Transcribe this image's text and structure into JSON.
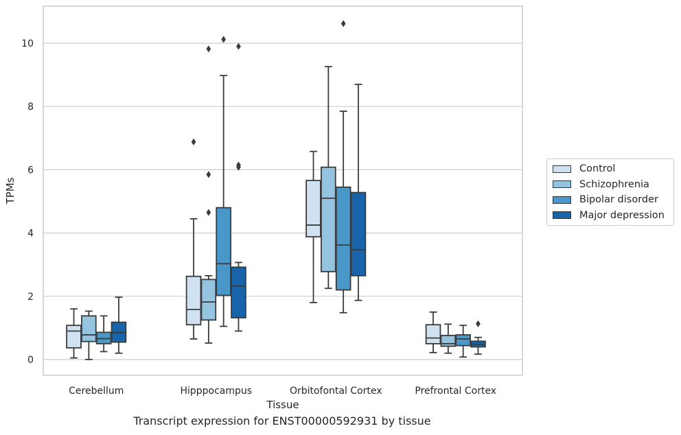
{
  "chart_data": {
    "type": "boxplot",
    "title": "Transcript expression for ENST00000592931 by tissue",
    "xlabel": "Tissue",
    "ylabel": "TPMs",
    "ylim": [
      -0.5,
      11.2
    ],
    "yticks": [
      0,
      2,
      4,
      6,
      8,
      10
    ],
    "grid": "horizontal",
    "legend_position": "right",
    "categories": [
      "Cerebellum",
      "Hipppocampus",
      "Orbitofontal Cortex",
      "Prefrontal Cortex"
    ],
    "series": [
      {
        "name": "Control",
        "color": "#d0e1f2",
        "boxes": [
          {
            "whislo": 0.05,
            "q1": 0.37,
            "med": 0.9,
            "q3": 1.08,
            "whishi": 1.6,
            "fliers": []
          },
          {
            "whislo": 0.65,
            "q1": 1.1,
            "med": 1.58,
            "q3": 2.63,
            "whishi": 4.45,
            "fliers": [
              6.88
            ]
          },
          {
            "whislo": 1.8,
            "q1": 3.88,
            "med": 4.25,
            "q3": 5.66,
            "whishi": 6.58,
            "fliers": []
          },
          {
            "whislo": 0.22,
            "q1": 0.5,
            "med": 0.68,
            "q3": 1.1,
            "whishi": 1.5,
            "fliers": []
          }
        ]
      },
      {
        "name": "Schizophrenia",
        "color": "#94c4df",
        "boxes": [
          {
            "whislo": 0.0,
            "q1": 0.57,
            "med": 0.78,
            "q3": 1.38,
            "whishi": 1.53,
            "fliers": []
          },
          {
            "whislo": 0.52,
            "q1": 1.25,
            "med": 1.82,
            "q3": 2.53,
            "whishi": 2.65,
            "fliers": [
              4.65,
              5.85,
              9.82
            ]
          },
          {
            "whislo": 2.25,
            "q1": 2.78,
            "med": 5.1,
            "q3": 6.08,
            "whishi": 9.26,
            "fliers": []
          },
          {
            "whislo": 0.2,
            "q1": 0.42,
            "med": 0.5,
            "q3": 0.76,
            "whishi": 1.12,
            "fliers": []
          }
        ]
      },
      {
        "name": "Bipolar disorder",
        "color": "#4a98c9",
        "boxes": [
          {
            "whislo": 0.25,
            "q1": 0.5,
            "med": 0.66,
            "q3": 0.86,
            "whishi": 1.38,
            "fliers": []
          },
          {
            "whislo": 1.05,
            "q1": 2.03,
            "med": 3.03,
            "q3": 4.8,
            "whishi": 8.98,
            "fliers": [
              10.12
            ]
          },
          {
            "whislo": 1.48,
            "q1": 2.2,
            "med": 3.62,
            "q3": 5.45,
            "whishi": 7.85,
            "fliers": [
              10.62
            ]
          },
          {
            "whislo": 0.08,
            "q1": 0.44,
            "med": 0.65,
            "q3": 0.78,
            "whishi": 1.08,
            "fliers": []
          }
        ]
      },
      {
        "name": "Major depression",
        "color": "#1764ab",
        "boxes": [
          {
            "whislo": 0.2,
            "q1": 0.55,
            "med": 0.85,
            "q3": 1.18,
            "whishi": 1.97,
            "fliers": []
          },
          {
            "whislo": 0.9,
            "q1": 1.32,
            "med": 2.32,
            "q3": 2.92,
            "whishi": 3.07,
            "fliers": [
              6.08,
              6.15,
              9.9
            ]
          },
          {
            "whislo": 1.87,
            "q1": 2.65,
            "med": 3.47,
            "q3": 5.28,
            "whishi": 8.7,
            "fliers": []
          },
          {
            "whislo": 0.17,
            "q1": 0.4,
            "med": 0.48,
            "q3": 0.58,
            "whishi": 0.7,
            "fliers": [
              1.13
            ]
          }
        ]
      }
    ]
  }
}
